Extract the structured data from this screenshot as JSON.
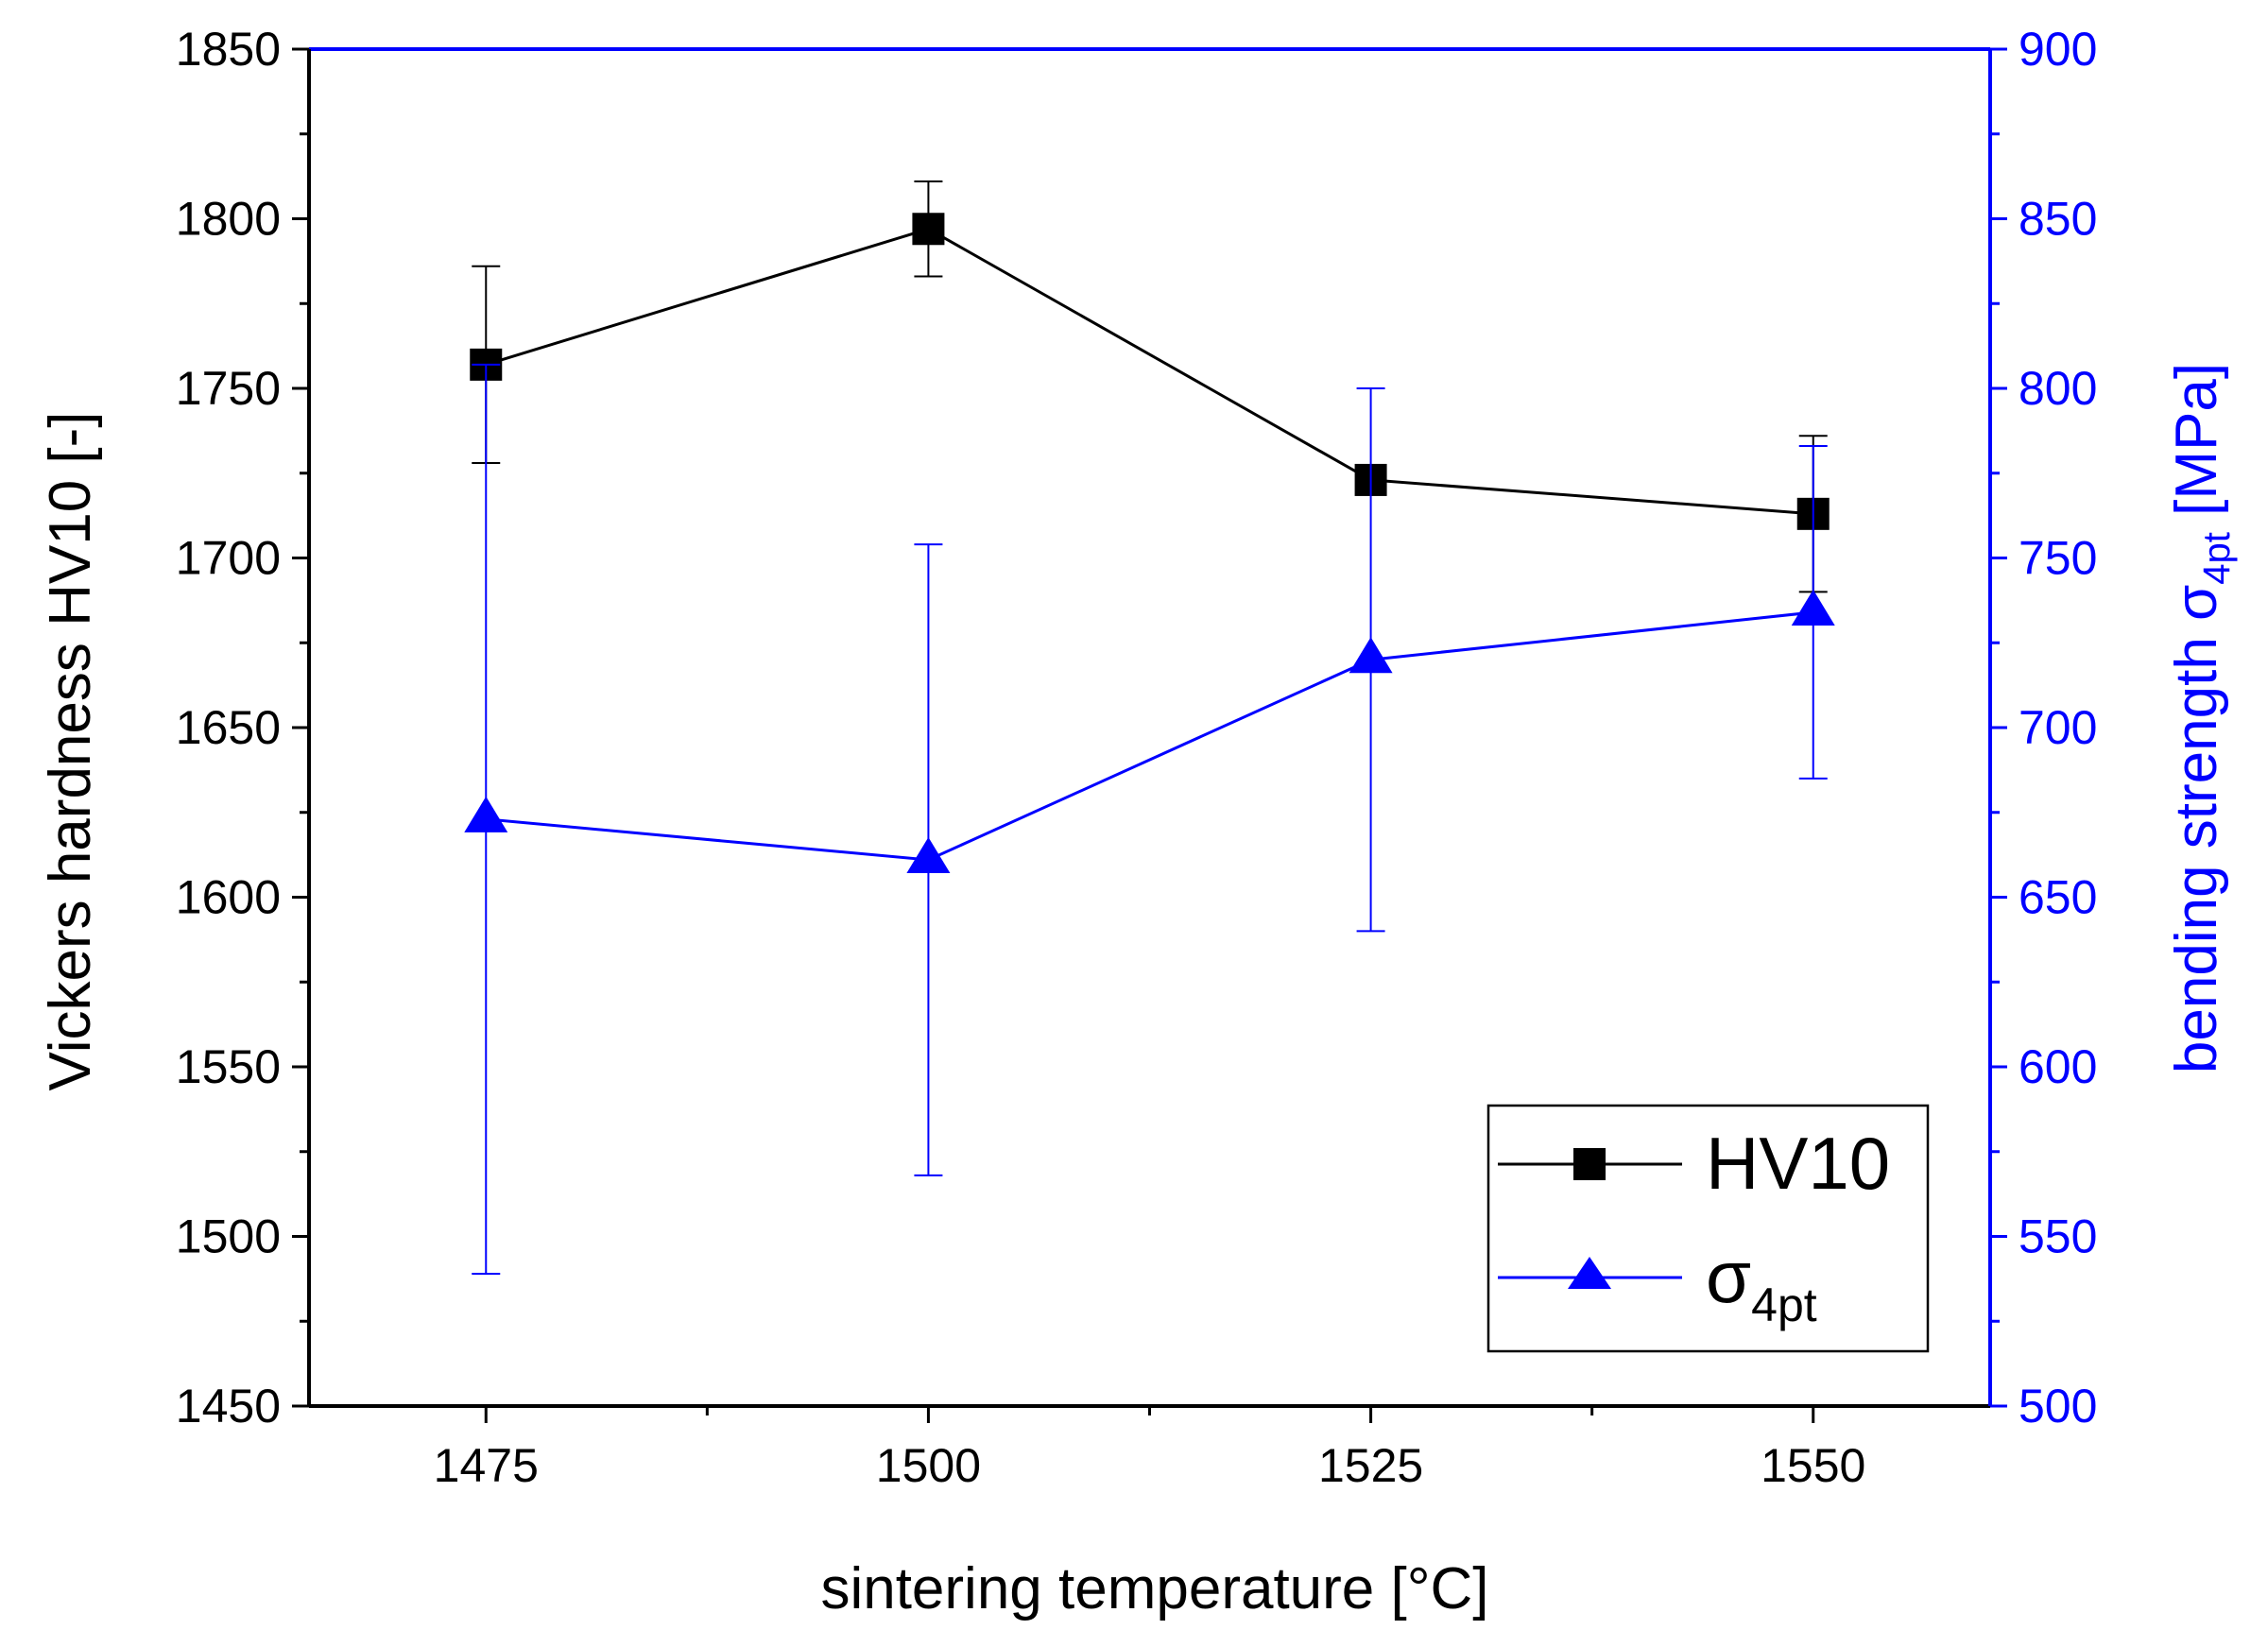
{
  "chart_data": {
    "type": "line",
    "x": [
      1475,
      1500,
      1525,
      1550
    ],
    "xlabel": "sintering temperature [°C]",
    "xlim": [
      1465,
      1560
    ],
    "xticks": [
      1475,
      1500,
      1525,
      1550
    ],
    "y_left": {
      "label": "Vickers hardness HV10 [-]",
      "lim": [
        1450,
        1850
      ],
      "ticks": [
        1450,
        1500,
        1550,
        1600,
        1650,
        1700,
        1750,
        1800,
        1850
      ],
      "color": "#000000"
    },
    "y_right": {
      "label_main": "bending strength σ",
      "label_sub": "4pt",
      "label_tail": " [MPa]",
      "lim": [
        500,
        900
      ],
      "ticks": [
        500,
        550,
        600,
        650,
        700,
        750,
        800,
        850,
        900
      ],
      "color": "#0000ff"
    },
    "series": [
      {
        "name": "HV10",
        "axis": "left",
        "marker": "square",
        "color": "#000000",
        "values": [
          1757,
          1797,
          1723,
          1713
        ],
        "err_low": [
          1728,
          1783,
          1723,
          1690
        ],
        "err_high": [
          1786,
          1811,
          1723,
          1736
        ]
      },
      {
        "name": "σ",
        "name_sub": "4pt",
        "axis": "right",
        "marker": "triangle",
        "color": "#0000ff",
        "values": [
          673,
          661,
          720,
          734
        ],
        "err_low": [
          539,
          568,
          640,
          685
        ],
        "err_high": [
          807,
          754,
          800,
          783
        ]
      }
    ],
    "legend": "bottom-right"
  }
}
